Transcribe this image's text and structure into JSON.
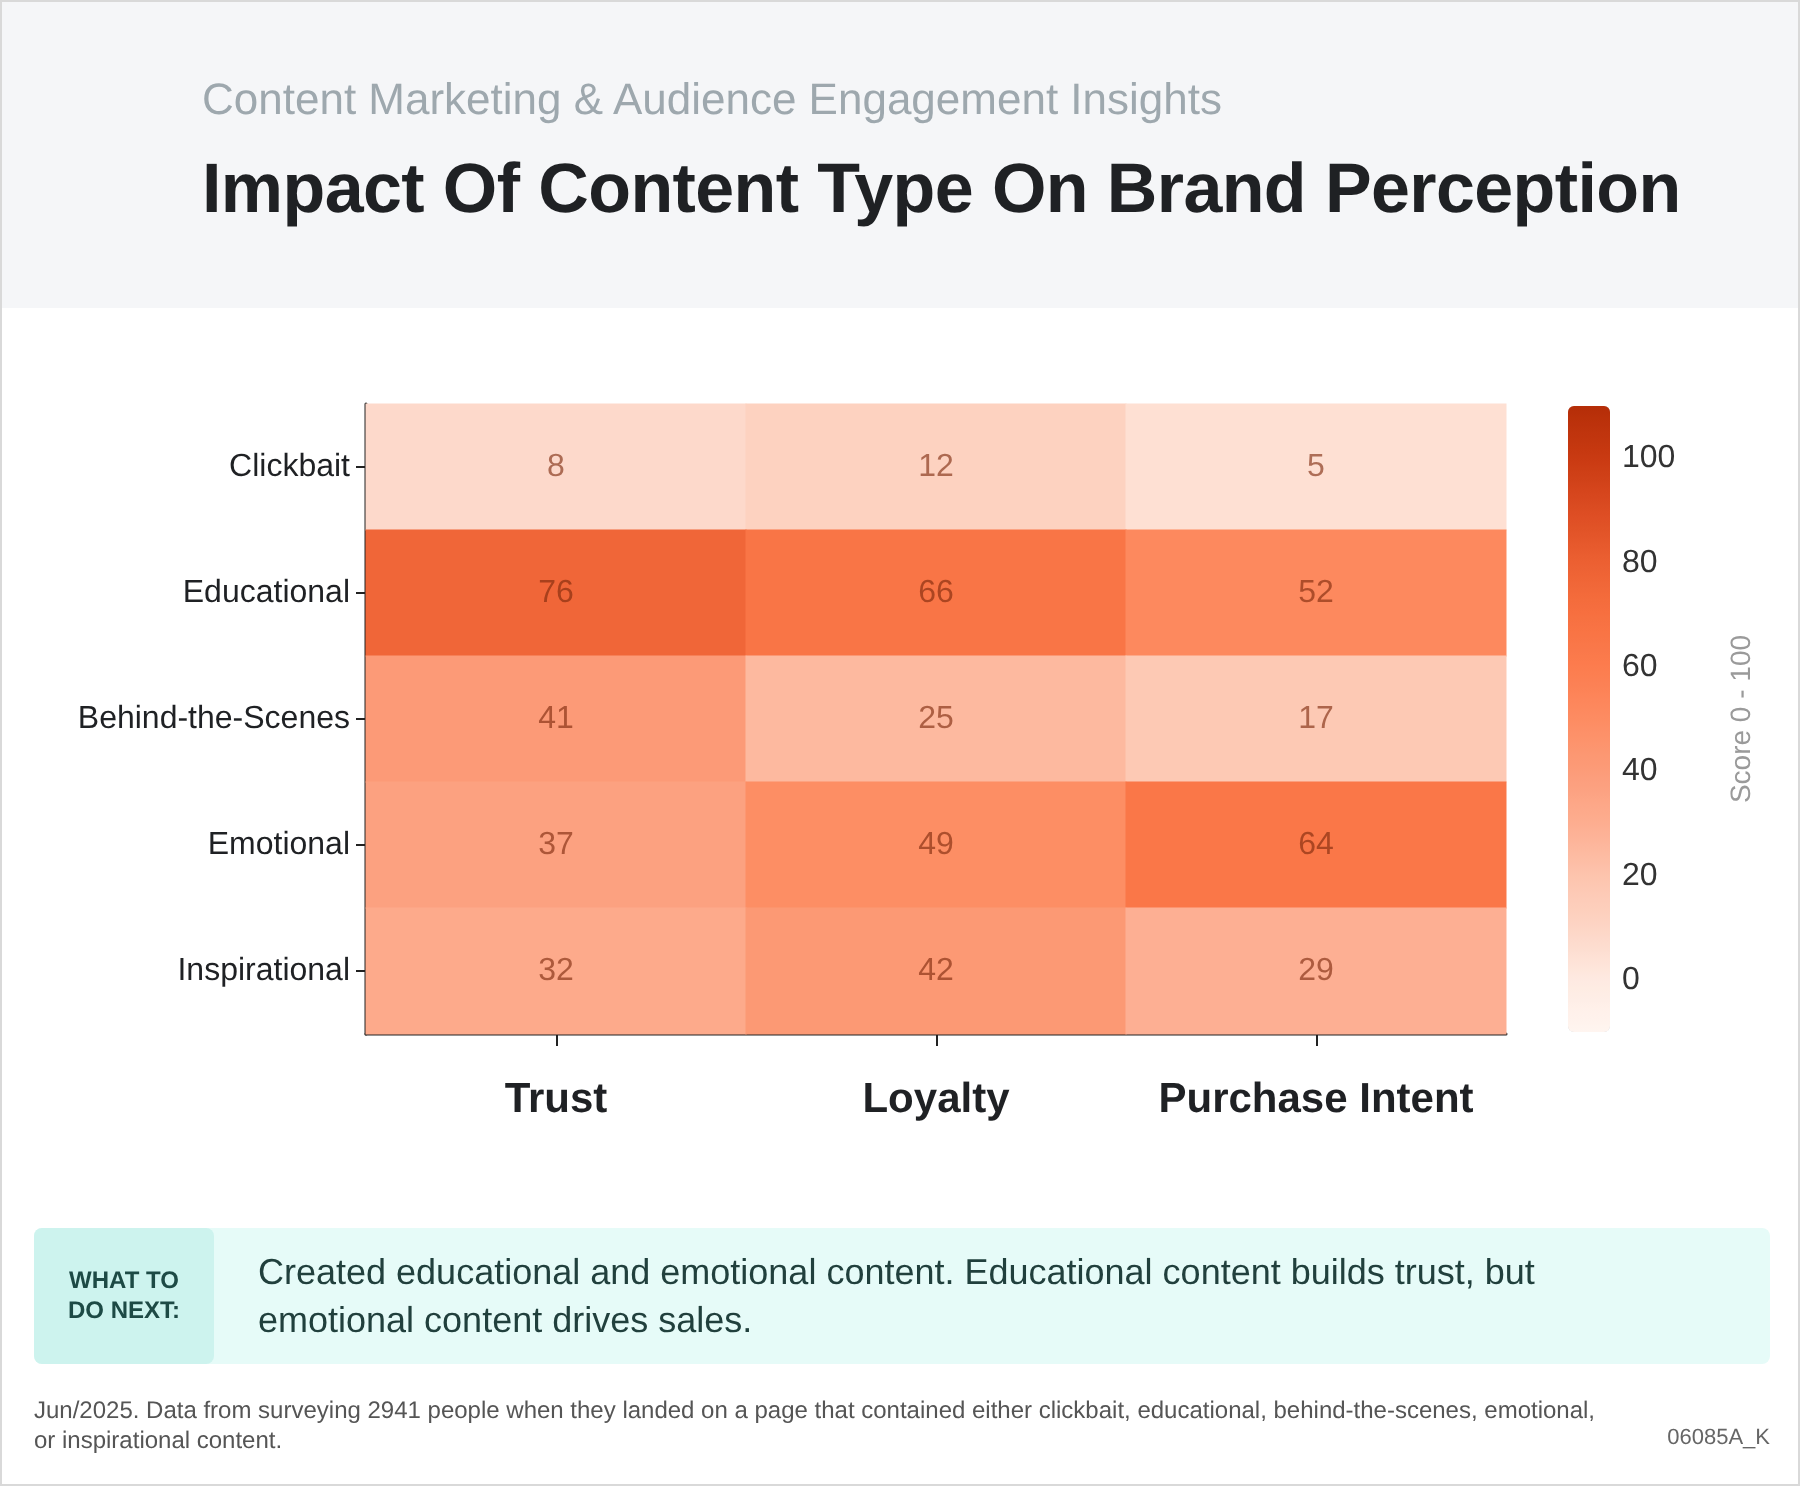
{
  "chart_data": {
    "type": "heatmap",
    "title": "Impact Of Content Type On Brand Perception",
    "subtitle": "Content Marketing & Audience Engagement Insights",
    "categories": [
      "Trust",
      "Loyalty",
      "Purchase Intent"
    ],
    "y_categories": [
      "Clickbait",
      "Educational",
      "Behind-the-Scenes",
      "Emotional",
      "Inspirational"
    ],
    "cells": [
      [
        8,
        12,
        5
      ],
      [
        76,
        66,
        52
      ],
      [
        41,
        25,
        17
      ],
      [
        37,
        49,
        64
      ],
      [
        32,
        42,
        29
      ]
    ],
    "data_labels": true,
    "clabel": "Score 0 - 100",
    "clim": [
      -10,
      110
    ],
    "cticks": [
      0,
      20,
      40,
      60,
      80,
      100
    ],
    "annotations": [
      "WHAT TO DO NEXT:",
      "Created educational and emotional content. Educational content builds trust, but emotional content drives sales.",
      "Jun/2025. Data from surveying 2941 people when they landed on a page that contained either clickbait, educational, behind-the-scenes, emotional, or inspirational content.",
      "06085A_K"
    ]
  }
}
